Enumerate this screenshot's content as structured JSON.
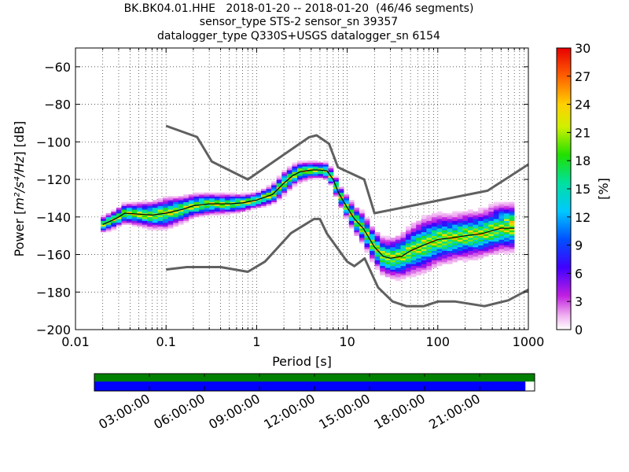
{
  "title_lines": [
    "BK.BK04.01.HHE   2018-01-20 -- 2018-01-20  (46/46 segments)",
    "sensor_type STS-2 sensor_sn 39357",
    "datalogger_type Q330S+USGS datalogger_sn 6154"
  ],
  "colors": {
    "noise_model": "#606060",
    "mean_line": "#000000",
    "grid": "#000000",
    "coverage_full": "#008000",
    "coverage_segments": "#0000ff"
  },
  "chart_data": {
    "type": "heatmap",
    "subtype": "probabilistic power spectral density",
    "xlabel": "Period [s]",
    "ylabel_text": "Power [",
    "ylabel_math": "m²/s⁴/Hz",
    "ylabel_unit": "] [dB]",
    "x_scale": "log",
    "xlim": [
      0.01,
      1000
    ],
    "ylim": [
      -200,
      -50
    ],
    "x_ticks": [
      0.01,
      0.1,
      1,
      10,
      100,
      1000
    ],
    "x_tick_labels": [
      "0.01",
      "0.1",
      "1",
      "10",
      "100",
      "1000"
    ],
    "y_ticks": [
      -200,
      -180,
      -160,
      -140,
      -120,
      -100,
      -80,
      -60
    ],
    "y_tick_labels": [
      "−200",
      "−180",
      "−160",
      "−140",
      "−120",
      "−100",
      "−80",
      "−60"
    ],
    "grid": true,
    "colorbar": {
      "label": "[%]",
      "range": [
        0,
        30
      ],
      "ticks": [
        0,
        3,
        6,
        9,
        12,
        15,
        18,
        21,
        24,
        27,
        30
      ],
      "tick_labels": [
        "0",
        "3",
        "6",
        "9",
        "12",
        "15",
        "18",
        "21",
        "24",
        "27",
        "30"
      ],
      "colormap": "pqlx"
    },
    "mean_curve": [
      [
        0.02,
        -144
      ],
      [
        0.025,
        -142
      ],
      [
        0.03,
        -140
      ],
      [
        0.035,
        -138
      ],
      [
        0.05,
        -138.5
      ],
      [
        0.07,
        -139
      ],
      [
        0.1,
        -138
      ],
      [
        0.15,
        -136
      ],
      [
        0.2,
        -134
      ],
      [
        0.3,
        -133
      ],
      [
        0.5,
        -133
      ],
      [
        0.7,
        -132.5
      ],
      [
        1,
        -131
      ],
      [
        1.5,
        -128
      ],
      [
        2,
        -122
      ],
      [
        2.5,
        -118
      ],
      [
        3,
        -116
      ],
      [
        4,
        -115
      ],
      [
        5,
        -115
      ],
      [
        6,
        -115.5
      ],
      [
        7,
        -120
      ],
      [
        8,
        -127
      ],
      [
        10,
        -135
      ],
      [
        12,
        -141
      ],
      [
        15,
        -146
      ],
      [
        20,
        -156
      ],
      [
        25,
        -161
      ],
      [
        30,
        -162
      ],
      [
        40,
        -161
      ],
      [
        50,
        -158
      ],
      [
        70,
        -155
      ],
      [
        100,
        -152
      ],
      [
        150,
        -151
      ],
      [
        200,
        -150
      ],
      [
        300,
        -149
      ],
      [
        500,
        -146
      ],
      [
        700,
        -146
      ]
    ],
    "band_half_width": [
      [
        0.02,
        2
      ],
      [
        0.05,
        3
      ],
      [
        0.1,
        4
      ],
      [
        0.2,
        3
      ],
      [
        0.5,
        2.5
      ],
      [
        1,
        2
      ],
      [
        2,
        3
      ],
      [
        5,
        2
      ],
      [
        8,
        2.5
      ],
      [
        15,
        4
      ],
      [
        30,
        5
      ],
      [
        70,
        7
      ],
      [
        150,
        6
      ],
      [
        300,
        6
      ],
      [
        700,
        6
      ]
    ],
    "noise_model_high": [
      [
        0.1,
        -91.5
      ],
      [
        0.22,
        -97.4
      ],
      [
        0.32,
        -110.5
      ],
      [
        0.8,
        -120
      ],
      [
        3.8,
        -97.5
      ],
      [
        4.6,
        -96.5
      ],
      [
        6.3,
        -101
      ],
      [
        7.9,
        -113.5
      ],
      [
        15.4,
        -120
      ],
      [
        20,
        -138
      ],
      [
        354.8,
        -126
      ],
      [
        1000,
        -112
      ]
    ],
    "noise_model_low": [
      [
        0.1,
        -168
      ],
      [
        0.17,
        -166.7
      ],
      [
        0.4,
        -166.7
      ],
      [
        0.8,
        -169.2
      ],
      [
        1.24,
        -163.7
      ],
      [
        2.4,
        -148.6
      ],
      [
        4.3,
        -141.1
      ],
      [
        5,
        -141.1
      ],
      [
        6,
        -149
      ],
      [
        10,
        -163.8
      ],
      [
        12,
        -166.2
      ],
      [
        15.6,
        -162.1
      ],
      [
        21.9,
        -177.5
      ],
      [
        31.6,
        -185
      ],
      [
        45,
        -187.5
      ],
      [
        70,
        -187.5
      ],
      [
        101,
        -185
      ],
      [
        154,
        -185
      ],
      [
        328,
        -187.5
      ],
      [
        600,
        -184.4
      ],
      [
        1000,
        -178.7
      ]
    ]
  },
  "coverage": {
    "time_ticks": [
      "03:00:00",
      "06:00:00",
      "09:00:00",
      "12:00:00",
      "15:00:00",
      "18:00:00",
      "21:00:00"
    ],
    "time_tick_hours": [
      3,
      6,
      9,
      12,
      15,
      18,
      21
    ],
    "span_hours": 24,
    "blue_fraction": 0.979
  }
}
